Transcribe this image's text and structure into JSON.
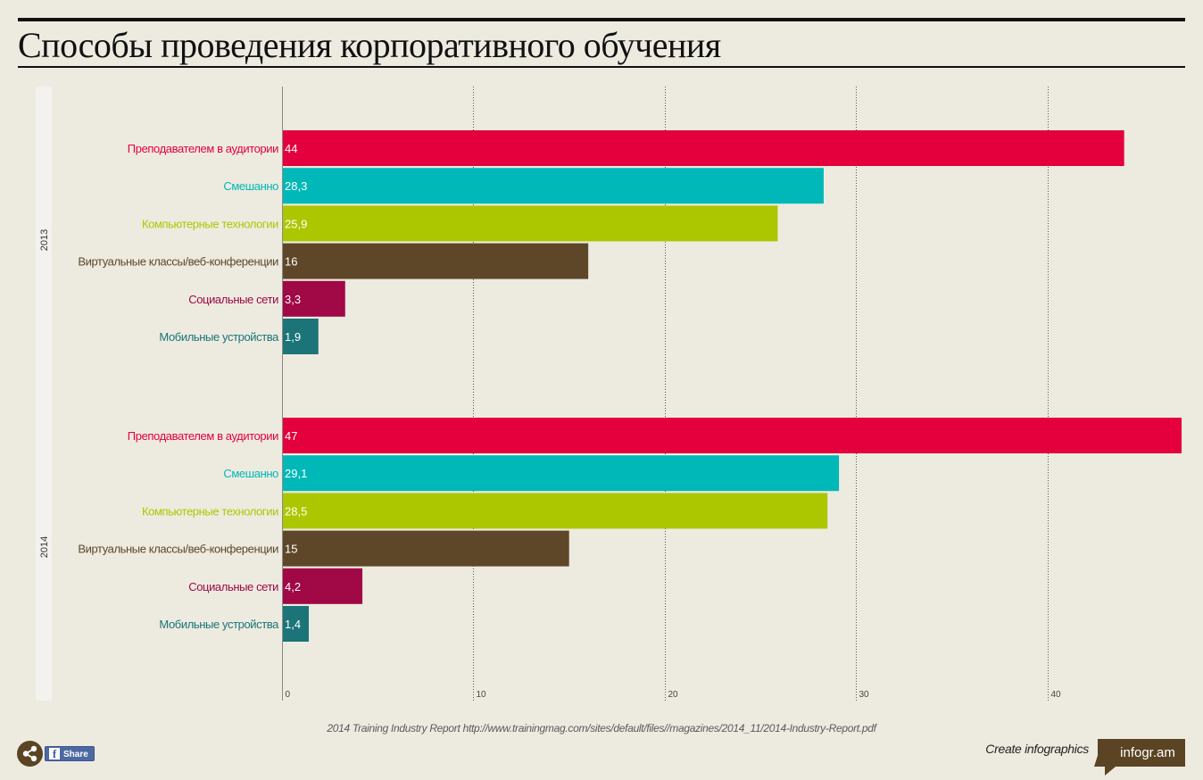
{
  "title": "Способы проведения корпоративного обучения",
  "source": "2014 Training Industry Report http://www.trainingmag.com/sites/default/files//magazines/2014_11/2014-Industry-Report.pdf",
  "footer": {
    "share_label": "Share",
    "create_text": "Create infographics",
    "brand": "infogr.am"
  },
  "colors": {
    "background": "#edebe0",
    "gridline": "#555555",
    "axis": "#8a8a8a",
    "group_band": "#f3f2ee"
  },
  "chart_data": {
    "type": "bar",
    "orientation": "horizontal",
    "title": "Способы проведения корпоративного обучения",
    "xlim": [
      0,
      47
    ],
    "x_ticks": [
      0,
      10,
      20,
      30,
      40
    ],
    "grid": true,
    "categories": [
      "Преподавателем в аудитории",
      "Смешанно",
      "Компьютерные технологии",
      "Виртуальные классы/веб-конференции",
      "Социальные сети",
      "Мобильные устройства"
    ],
    "category_colors": [
      "#e4003c",
      "#00b8b8",
      "#acc700",
      "#5e4728",
      "#a00846",
      "#1b7478"
    ],
    "series": [
      {
        "name": "2013",
        "values": [
          44,
          28.3,
          25.9,
          16,
          3.3,
          1.9
        ],
        "labels": [
          "44",
          "28,3",
          "25,9",
          "16",
          "3,3",
          "1,9"
        ]
      },
      {
        "name": "2014",
        "values": [
          47,
          29.1,
          28.5,
          15,
          4.2,
          1.4
        ],
        "labels": [
          "47",
          "29,1",
          "28,5",
          "15",
          "4,2",
          "1,4"
        ]
      }
    ]
  }
}
